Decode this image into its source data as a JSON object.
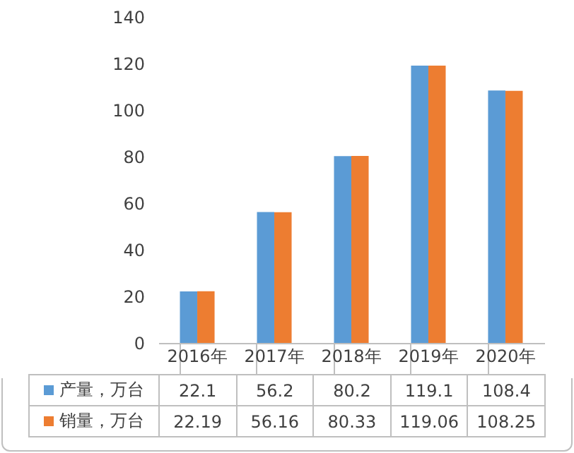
{
  "chart_data": {
    "type": "bar",
    "categories": [
      "2016年",
      "2017年",
      "2018年",
      "2019年",
      "2020年"
    ],
    "series": [
      {
        "name": "产量，万台",
        "color": "#5b9bd5",
        "values": [
          22.1,
          56.2,
          80.2,
          119.1,
          108.4
        ]
      },
      {
        "name": "销量，万台",
        "color": "#ed7d31",
        "values": [
          22.19,
          56.16,
          80.33,
          119.06,
          108.25
        ]
      }
    ],
    "ylim": [
      0,
      140
    ],
    "yticks": [
      0,
      20,
      40,
      60,
      80,
      100,
      120,
      140
    ],
    "data_labels": true,
    "legend": "bottom",
    "grid": false
  }
}
